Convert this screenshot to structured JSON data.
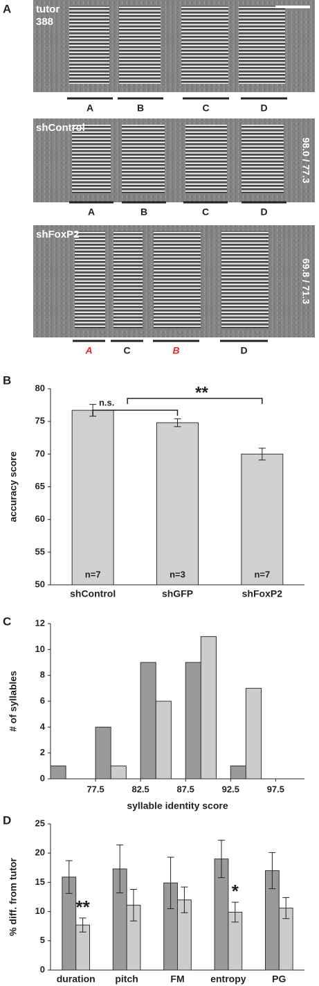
{
  "panel_labels": [
    "A",
    "B",
    "C",
    "D"
  ],
  "spectrograms": [
    {
      "label_lines": [
        "tutor",
        "388"
      ],
      "segments": [
        {
          "text": "A"
        },
        {
          "text": "B"
        },
        {
          "text": "C"
        },
        {
          "text": "D"
        }
      ]
    },
    {
      "label_lines": [
        "shControl"
      ],
      "score": "98.0 / 77.3",
      "segments": [
        {
          "text": "A"
        },
        {
          "text": "B"
        },
        {
          "text": "C"
        },
        {
          "text": "D"
        }
      ]
    },
    {
      "label_lines": [
        "shFoxP2"
      ],
      "score": "69.8 / 71.3",
      "segments": [
        {
          "text": "A",
          "color": "#e8262b",
          "italic": true
        },
        {
          "text": "C"
        },
        {
          "text": "B",
          "color": "#e8262b",
          "italic": true
        },
        {
          "text": "D"
        }
      ]
    }
  ],
  "chart_data": [
    {
      "type": "bar",
      "ylabel": "accuracy score",
      "categories": [
        "shControl",
        "shGFP",
        "shFoxP2"
      ],
      "values": [
        76.7,
        74.8,
        70.0
      ],
      "errors": [
        0.9,
        0.6,
        0.9
      ],
      "value_labels": [
        "n=7",
        "n=3",
        "n=7"
      ],
      "color": "#d0d0d0",
      "ylim": [
        50,
        80
      ],
      "yticks": [
        50,
        55,
        60,
        65,
        70,
        75,
        80
      ],
      "annotations": [
        "n.s.",
        "**"
      ]
    },
    {
      "type": "histogram",
      "ylabel": "# of syllables",
      "xlabel": "syllable identity score",
      "bins": [
        72.5,
        77.5,
        82.5,
        87.5,
        92.5,
        97.5
      ],
      "series": [
        {
          "color": "#9a9a9a",
          "values": [
            1,
            4,
            9,
            9,
            1
          ]
        },
        {
          "color": "#cccccc",
          "values": [
            0,
            1,
            6,
            11,
            7
          ]
        }
      ],
      "xlim": [
        72.5,
        100.7
      ],
      "xticks": [
        77.5,
        82.5,
        87.5,
        92.5,
        97.5
      ],
      "ylim": [
        0,
        12
      ],
      "yticks": [
        0,
        2,
        4,
        6,
        8,
        10,
        12
      ]
    },
    {
      "type": "grouped-bar",
      "ylabel": "% diff. from tutor",
      "categories": [
        "duration",
        "pitch",
        "FM",
        "entropy",
        "PG"
      ],
      "series": [
        {
          "color": "#9a9a9a",
          "values": [
            15.9,
            17.3,
            14.9,
            19.0,
            17.0
          ],
          "errors": [
            2.8,
            4.1,
            4.4,
            3.2,
            3.1
          ]
        },
        {
          "color": "#cccccc",
          "values": [
            7.7,
            11.1,
            12.0,
            9.9,
            10.6
          ],
          "errors": [
            1.2,
            2.7,
            2.2,
            1.7,
            1.8
          ]
        }
      ],
      "significance": [
        "**",
        null,
        null,
        "*",
        null
      ],
      "ylim": [
        0,
        25
      ],
      "yticks": [
        0,
        5,
        10,
        15,
        20,
        25
      ]
    }
  ]
}
